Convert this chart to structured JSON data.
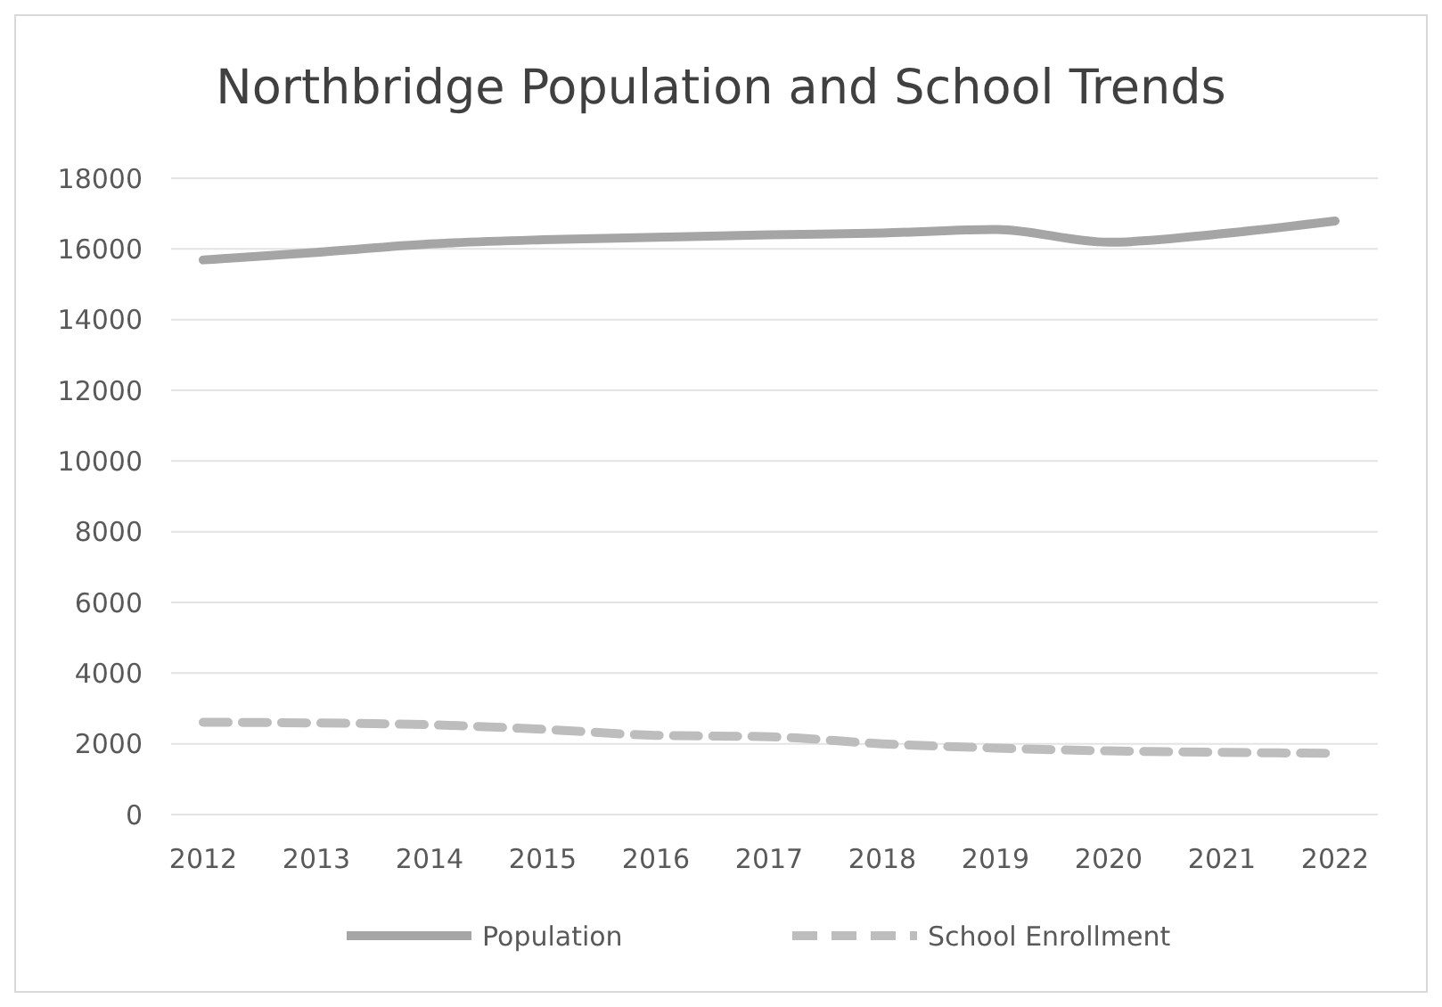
{
  "chart_data": {
    "type": "line",
    "title": "Northbridge Population and School Trends",
    "categories": [
      "2012",
      "2013",
      "2014",
      "2015",
      "2016",
      "2017",
      "2018",
      "2019",
      "2020",
      "2021",
      "2022"
    ],
    "series": [
      {
        "name": "Population",
        "color": "#a5a5a5",
        "line_style": "solid",
        "values": [
          15690,
          15900,
          16140,
          16260,
          16330,
          16400,
          16450,
          16550,
          16190,
          16430,
          16790
        ]
      },
      {
        "name": "School Enrollment",
        "color": "#bdbdbd",
        "line_style": "dashed",
        "values": [
          2610,
          2590,
          2540,
          2410,
          2240,
          2200,
          2000,
          1880,
          1800,
          1760,
          1730
        ]
      }
    ],
    "ylim": [
      0,
      18000
    ],
    "yticks": [
      0,
      2000,
      4000,
      6000,
      8000,
      10000,
      12000,
      14000,
      16000,
      18000
    ],
    "grid": "y",
    "legend": "bottom",
    "marker": "none"
  }
}
